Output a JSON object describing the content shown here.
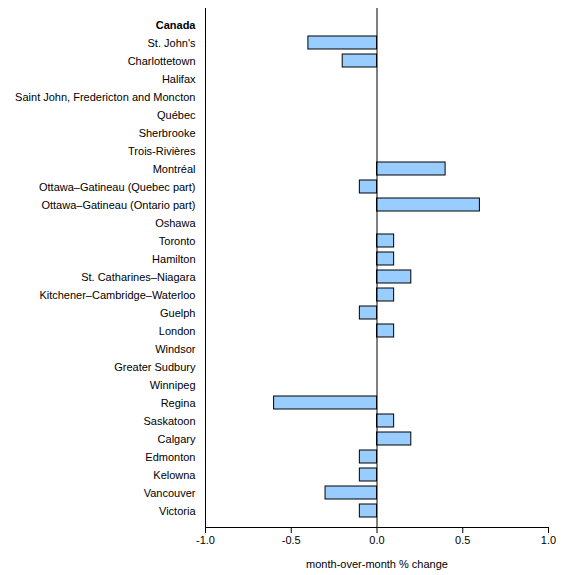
{
  "chart_data": {
    "type": "bar",
    "orientation": "horizontal",
    "x_label": "month-over-month % change",
    "categories": [
      "Canada",
      "St. John's",
      "Charlottetown",
      "Halifax",
      "Saint John, Fredericton and Moncton",
      "Québec",
      "Sherbrooke",
      "Trois-Rivières",
      "Montréal",
      "Ottawa–Gatineau (Quebec part)",
      "Ottawa–Gatineau (Ontario part)",
      "Oshawa",
      "Toronto",
      "Hamilton",
      "St. Catharines–Niagara",
      "Kitchener–Cambridge–Waterloo",
      "Guelph",
      "London",
      "Windsor",
      "Greater Sudbury",
      "Winnipeg",
      "Regina",
      "Saskatoon",
      "Calgary",
      "Edmonton",
      "Kelowna",
      "Vancouver",
      "Victoria"
    ],
    "values": [
      0,
      -0.4,
      -0.2,
      0,
      0,
      0,
      0,
      0,
      0.4,
      -0.1,
      0.6,
      0,
      0.1,
      0.1,
      0.2,
      0.1,
      -0.1,
      0.1,
      0,
      0,
      0,
      -0.6,
      0.1,
      0.2,
      -0.1,
      -0.1,
      -0.3,
      -0.1
    ],
    "color": "#99ccff",
    "xlim": [
      -1,
      1
    ],
    "xticks": [
      {
        "value": -1,
        "label": "-1.0"
      },
      -0.5,
      {
        "value": 0,
        "label": "0.0"
      },
      0.5,
      {
        "value": 1,
        "label": "1.0"
      }
    ],
    "grid": false
  }
}
